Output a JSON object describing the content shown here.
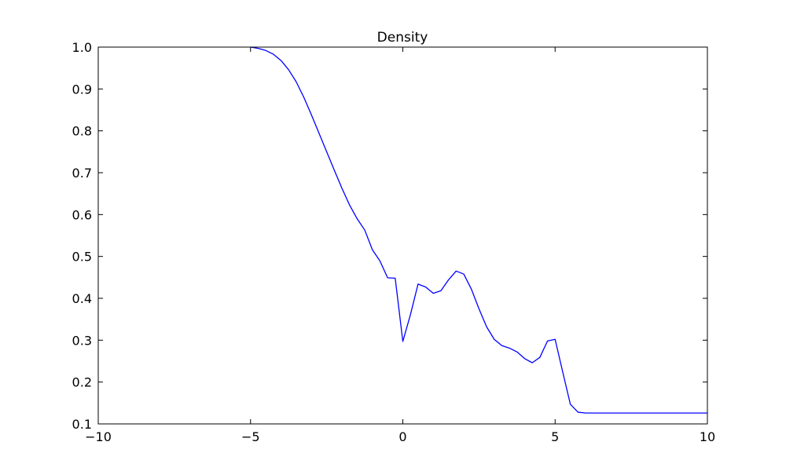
{
  "chart_data": {
    "type": "line",
    "title": "Density",
    "xlabel": "",
    "ylabel": "",
    "xlim": [
      -10,
      10
    ],
    "ylim": [
      0.1,
      1.0
    ],
    "grid": false,
    "x_ticks": [
      -10,
      -5,
      0,
      5,
      10
    ],
    "x_tick_labels": [
      "−10",
      "−5",
      "0",
      "5",
      "10"
    ],
    "y_ticks": [
      0.1,
      0.2,
      0.3,
      0.4,
      0.5,
      0.6,
      0.7,
      0.8,
      0.9,
      1.0
    ],
    "y_tick_labels": [
      "0.1",
      "0.2",
      "0.3",
      "0.4",
      "0.5",
      "0.6",
      "0.7",
      "0.8",
      "0.9",
      "1.0"
    ],
    "series": [
      {
        "color": "#0000ff",
        "x": [
          -5.0,
          -4.75,
          -4.5,
          -4.25,
          -4.0,
          -3.75,
          -3.5,
          -3.25,
          -3.0,
          -2.75,
          -2.5,
          -2.25,
          -2.0,
          -1.75,
          -1.5,
          -1.25,
          -1.0,
          -0.75,
          -0.5,
          -0.25,
          0.0,
          0.25,
          0.5,
          0.75,
          1.0,
          1.25,
          1.5,
          1.75,
          2.0,
          2.25,
          2.5,
          2.75,
          3.0,
          3.25,
          3.5,
          3.75,
          4.0,
          4.25,
          4.5,
          4.75,
          5.0,
          5.25,
          5.5,
          5.75,
          6.0,
          6.25,
          6.5,
          7.0,
          8.0,
          9.0,
          10.0
        ],
        "y": [
          1.0,
          0.997,
          0.992,
          0.983,
          0.968,
          0.946,
          0.917,
          0.88,
          0.838,
          0.794,
          0.75,
          0.706,
          0.663,
          0.623,
          0.59,
          0.563,
          0.516,
          0.489,
          0.449,
          0.448,
          0.297,
          0.361,
          0.434,
          0.427,
          0.412,
          0.418,
          0.444,
          0.465,
          0.458,
          0.422,
          0.375,
          0.332,
          0.302,
          0.287,
          0.281,
          0.272,
          0.256,
          0.246,
          0.259,
          0.298,
          0.302,
          0.224,
          0.147,
          0.128,
          0.126,
          0.126,
          0.126,
          0.126,
          0.126,
          0.126,
          0.126
        ]
      }
    ]
  }
}
